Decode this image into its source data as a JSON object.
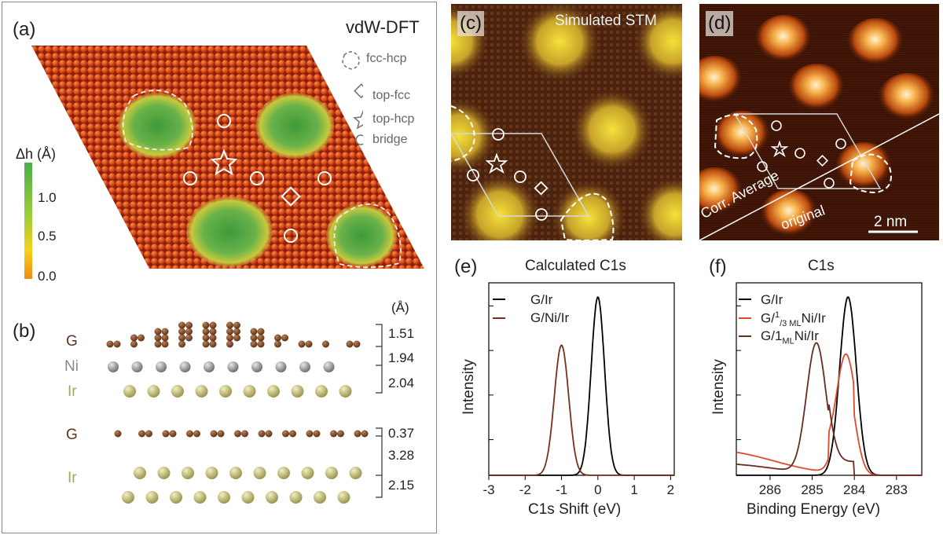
{
  "panel_labels": {
    "a": "(a)",
    "b": "(b)",
    "c": "(c)",
    "d": "(d)",
    "e": "(e)",
    "f": "(f)"
  },
  "panel_a": {
    "title": "vdW-DFT",
    "legend": [
      "fcc-hcp",
      "top-fcc",
      "top-hcp",
      "bridge"
    ],
    "colorbar": {
      "label": "Δh (Å)",
      "ticks": [
        "1.0",
        "0.5",
        "0.0"
      ]
    }
  },
  "panel_b": {
    "unit": "(Å)",
    "upper_layers": [
      "G",
      "Ni",
      "Ir"
    ],
    "lower_layers": [
      "G",
      "Ir"
    ],
    "distances_upper": [
      "1.51",
      "1.94",
      "2.04"
    ],
    "distances_lower": [
      "0.37",
      "3.28",
      "2.15"
    ]
  },
  "panel_c": {
    "title": "Simulated STM"
  },
  "panel_d": {
    "left_label": "Corr. Average",
    "right_label": "original",
    "scale": "2 nm"
  },
  "colors": {
    "g_ir": "#000000",
    "g_ni_ir": "#7a2e1c",
    "g_third_ni": "#e04a2c",
    "g_1ml_ni": "#6b2a22",
    "atom_c": "#7a4a2a",
    "atom_ni": "#9a9a9a",
    "atom_ir": "#c9c27a"
  },
  "chart_data": [
    {
      "type": "line",
      "title": "Calculated C1s",
      "xlabel": "C1s Shift (eV)",
      "ylabel": "Intensity",
      "xlim": [
        -3,
        2.1
      ],
      "xticks": [
        "-3",
        "-2",
        "-1",
        "0",
        "1",
        "2"
      ],
      "series": [
        {
          "name": "G/Ir",
          "color": "#000000",
          "center": 0.0,
          "height": 1.0,
          "width": 0.26
        },
        {
          "name": "G/Ni/Ir",
          "color": "#7a2e1c",
          "center": -1.0,
          "height": 0.73,
          "width": 0.28
        }
      ]
    },
    {
      "type": "line",
      "title": "C1s",
      "xlabel": "Binding Energy (eV)",
      "ylabel": "Intensity",
      "xlim": [
        286.8,
        282.4
      ],
      "xticks": [
        "286",
        "285",
        "284",
        "283"
      ],
      "series": [
        {
          "name": "G/Ir",
          "color": "#000000",
          "center": 284.15,
          "height": 1.0,
          "width": 0.28
        },
        {
          "name_prefix": "G/",
          "name_super": "1",
          "name_sub": "/3 ML",
          "name_suffix": "Ni/Ir",
          "color": "#e04a2c",
          "center": 284.2,
          "height": 0.52,
          "width": 0.3
        },
        {
          "name_prefix": "G/1",
          "name_sub": "ML",
          "name_suffix": "Ni/Ir",
          "color": "#6b2a22",
          "center": 284.9,
          "height": 0.73,
          "width": 0.33
        }
      ]
    }
  ]
}
